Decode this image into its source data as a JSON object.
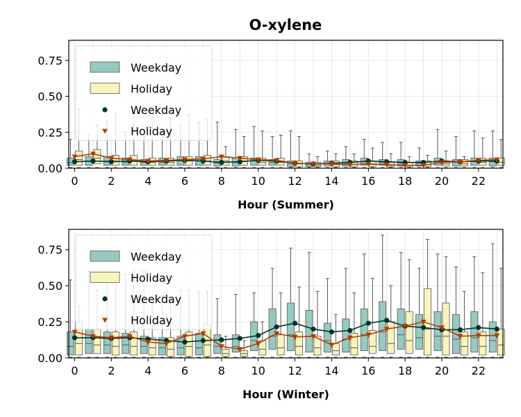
{
  "title": "O-xylene",
  "colors": {
    "weekday_box": "#96c9bf",
    "holiday_box": "#f7f5bd",
    "weekday_line": "#00332a",
    "holiday_line": "#b53b00",
    "whisker": "#555555",
    "grid": "#e6e6e6"
  },
  "chart_data": [
    {
      "type": "box",
      "xlabel": "Hour (Summer)",
      "ylabel": "",
      "ylim": [
        0,
        0.89
      ],
      "yticks": [
        "0.00",
        "0.25",
        "0.50",
        "0.75"
      ],
      "xticks": [
        "0",
        "2",
        "4",
        "6",
        "8",
        "10",
        "12",
        "14",
        "16",
        "18",
        "20",
        "22"
      ],
      "grid": true,
      "legend_position": "top-left",
      "legend": [
        "Weekday",
        "Holiday",
        "Weekday",
        "Holiday"
      ],
      "hours": [
        0,
        1,
        2,
        3,
        4,
        5,
        6,
        7,
        8,
        9,
        10,
        11,
        12,
        13,
        14,
        15,
        16,
        17,
        18,
        19,
        20,
        21,
        22,
        23
      ],
      "weekday_box": {
        "q1": [
          0.02,
          0.02,
          0.02,
          0.02,
          0.02,
          0.02,
          0.02,
          0.02,
          0.015,
          0.015,
          0.02,
          0.02,
          0.01,
          0.01,
          0.015,
          0.015,
          0.02,
          0.02,
          0.015,
          0.015,
          0.02,
          0.015,
          0.02,
          0.015
        ],
        "q3": [
          0.07,
          0.08,
          0.08,
          0.07,
          0.06,
          0.07,
          0.08,
          0.08,
          0.06,
          0.07,
          0.07,
          0.06,
          0.05,
          0.04,
          0.05,
          0.06,
          0.07,
          0.06,
          0.06,
          0.05,
          0.07,
          0.06,
          0.07,
          0.07
        ],
        "med": [
          0.04,
          0.05,
          0.05,
          0.04,
          0.04,
          0.04,
          0.05,
          0.05,
          0.035,
          0.04,
          0.05,
          0.04,
          0.03,
          0.025,
          0.03,
          0.035,
          0.045,
          0.04,
          0.035,
          0.035,
          0.045,
          0.04,
          0.045,
          0.045
        ],
        "wmax": [
          0.2,
          0.23,
          0.33,
          0.25,
          0.22,
          0.25,
          0.3,
          0.32,
          0.32,
          0.27,
          0.29,
          0.22,
          0.26,
          0.1,
          0.12,
          0.15,
          0.2,
          0.18,
          0.18,
          0.14,
          0.27,
          0.22,
          0.26,
          0.26
        ]
      },
      "holiday_box": {
        "q1": [
          0.02,
          0.03,
          0.02,
          0.02,
          0.02,
          0.02,
          0.02,
          0.02,
          0.02,
          0.02,
          0.02,
          0.02,
          0.01,
          0.01,
          0.01,
          0.01,
          0.01,
          0.01,
          0.01,
          0.01,
          0.015,
          0.015,
          0.02,
          0.02
        ],
        "q3": [
          0.12,
          0.13,
          0.09,
          0.09,
          0.07,
          0.07,
          0.08,
          0.09,
          0.08,
          0.08,
          0.07,
          0.07,
          0.05,
          0.04,
          0.05,
          0.05,
          0.05,
          0.04,
          0.04,
          0.05,
          0.05,
          0.06,
          0.07,
          0.07
        ],
        "med": [
          0.06,
          0.07,
          0.05,
          0.05,
          0.04,
          0.04,
          0.05,
          0.05,
          0.05,
          0.05,
          0.04,
          0.04,
          0.03,
          0.02,
          0.025,
          0.025,
          0.025,
          0.02,
          0.02,
          0.025,
          0.03,
          0.03,
          0.04,
          0.04
        ],
        "wmax": [
          0.41,
          0.3,
          0.38,
          0.38,
          0.35,
          0.35,
          0.37,
          0.34,
          0.15,
          0.22,
          0.26,
          0.23,
          0.22,
          0.08,
          0.1,
          0.1,
          0.14,
          0.1,
          0.08,
          0.09,
          0.12,
          0.08,
          0.21,
          0.2
        ]
      },
      "weekday_mean": [
        0.045,
        0.05,
        0.045,
        0.05,
        0.045,
        0.05,
        0.055,
        0.05,
        0.04,
        0.045,
        0.055,
        0.05,
        0.035,
        0.03,
        0.035,
        0.04,
        0.05,
        0.045,
        0.04,
        0.04,
        0.05,
        0.045,
        0.05,
        0.05
      ],
      "holiday_mean": [
        0.08,
        0.1,
        0.07,
        0.06,
        0.05,
        0.055,
        0.06,
        0.065,
        0.08,
        0.07,
        0.06,
        0.055,
        0.035,
        0.03,
        0.03,
        0.025,
        0.03,
        0.025,
        0.02,
        0.02,
        0.04,
        0.045,
        0.055,
        0.06
      ]
    },
    {
      "type": "box",
      "xlabel": "Hour (Winter)",
      "ylabel": "",
      "ylim": [
        0,
        0.89
      ],
      "yticks": [
        "0.00",
        "0.25",
        "0.50",
        "0.75"
      ],
      "xticks": [
        "0",
        "2",
        "4",
        "6",
        "8",
        "10",
        "12",
        "14",
        "16",
        "18",
        "20",
        "22"
      ],
      "grid": true,
      "legend_position": "top-left",
      "legend": [
        "Weekday",
        "Holiday",
        "Weekday",
        "Holiday"
      ],
      "hours": [
        0,
        1,
        2,
        3,
        4,
        5,
        6,
        7,
        8,
        9,
        10,
        11,
        12,
        13,
        14,
        15,
        16,
        17,
        18,
        19,
        20,
        21,
        22,
        23
      ],
      "weekday_box": {
        "q1": [
          0.02,
          0.03,
          0.03,
          0.03,
          0.03,
          0.02,
          0.02,
          0.02,
          0.03,
          0.04,
          0.05,
          0.06,
          0.05,
          0.04,
          0.04,
          0.04,
          0.05,
          0.05,
          0.06,
          0.06,
          0.05,
          0.03,
          0.04,
          0.04
        ],
        "q3": [
          0.18,
          0.2,
          0.18,
          0.17,
          0.15,
          0.14,
          0.15,
          0.17,
          0.16,
          0.16,
          0.25,
          0.34,
          0.38,
          0.33,
          0.24,
          0.27,
          0.34,
          0.39,
          0.34,
          0.3,
          0.32,
          0.3,
          0.32,
          0.25
        ],
        "med": [
          0.08,
          0.1,
          0.09,
          0.09,
          0.08,
          0.07,
          0.07,
          0.07,
          0.08,
          0.08,
          0.12,
          0.15,
          0.16,
          0.15,
          0.12,
          0.13,
          0.16,
          0.18,
          0.16,
          0.14,
          0.15,
          0.13,
          0.14,
          0.12
        ],
        "wmax": [
          0.54,
          0.6,
          0.53,
          0.58,
          0.6,
          0.43,
          0.47,
          0.46,
          0.41,
          0.44,
          0.45,
          0.62,
          0.76,
          0.73,
          0.55,
          0.62,
          0.72,
          0.85,
          0.73,
          0.62,
          0.72,
          0.63,
          0.7,
          0.79
        ]
      },
      "holiday_box": {
        "q1": [
          0.02,
          0.03,
          0.02,
          0.02,
          0.02,
          0.01,
          0.01,
          0.01,
          0.01,
          0.01,
          0.02,
          0.02,
          0.02,
          0.02,
          0.02,
          0.02,
          0.03,
          0.03,
          0.03,
          0.02,
          0.02,
          0.02,
          0.02,
          0.02
        ],
        "q3": [
          0.25,
          0.2,
          0.18,
          0.18,
          0.14,
          0.14,
          0.18,
          0.23,
          0.06,
          0.05,
          0.12,
          0.16,
          0.18,
          0.15,
          0.1,
          0.17,
          0.19,
          0.25,
          0.32,
          0.48,
          0.38,
          0.18,
          0.18,
          0.2
        ],
        "med": [
          0.1,
          0.09,
          0.08,
          0.08,
          0.07,
          0.06,
          0.08,
          0.09,
          0.03,
          0.03,
          0.06,
          0.07,
          0.08,
          0.07,
          0.05,
          0.07,
          0.08,
          0.1,
          0.12,
          0.2,
          0.15,
          0.08,
          0.08,
          0.09
        ],
        "wmax": [
          0.36,
          0.47,
          0.59,
          0.61,
          0.4,
          0.42,
          0.47,
          0.46,
          0.15,
          0.12,
          0.25,
          0.45,
          0.49,
          0.46,
          0.3,
          0.45,
          0.55,
          0.5,
          0.68,
          0.82,
          0.7,
          0.46,
          0.59,
          0.62
        ]
      },
      "weekday_mean": [
        0.14,
        0.14,
        0.135,
        0.14,
        0.13,
        0.12,
        0.11,
        0.12,
        0.125,
        0.135,
        0.155,
        0.215,
        0.24,
        0.2,
        0.18,
        0.19,
        0.24,
        0.26,
        0.22,
        0.21,
        0.195,
        0.195,
        0.21,
        0.2
      ],
      "holiday_mean": [
        0.18,
        0.15,
        0.14,
        0.15,
        0.11,
        0.1,
        0.15,
        0.17,
        0.08,
        0.06,
        0.1,
        0.17,
        0.145,
        0.15,
        0.09,
        0.14,
        0.16,
        0.2,
        0.22,
        0.25,
        0.21,
        0.15,
        0.155,
        0.155
      ]
    }
  ]
}
